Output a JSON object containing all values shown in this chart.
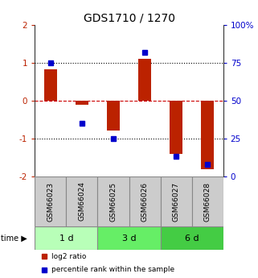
{
  "title": "GDS1710 / 1270",
  "samples": [
    "GSM66023",
    "GSM66024",
    "GSM66025",
    "GSM66026",
    "GSM66027",
    "GSM66028"
  ],
  "log2_ratio": [
    0.82,
    -0.12,
    -0.8,
    1.1,
    -1.42,
    -1.82
  ],
  "percentile_rank": [
    75,
    35,
    25,
    82,
    13,
    8
  ],
  "ylim_left": [
    -2,
    2
  ],
  "ylim_right": [
    0,
    100
  ],
  "yticks_left": [
    -2,
    -1,
    0,
    1,
    2
  ],
  "yticks_right": [
    0,
    25,
    50,
    75,
    100
  ],
  "ytick_labels_right": [
    "0",
    "25",
    "50",
    "75",
    "100%"
  ],
  "time_groups": [
    {
      "label": "1 d",
      "start": 0,
      "end": 2
    },
    {
      "label": "3 d",
      "start": 2,
      "end": 4
    },
    {
      "label": "6 d",
      "start": 4,
      "end": 6
    }
  ],
  "time_group_colors": [
    "#b8ffb8",
    "#66ee66",
    "#44cc44"
  ],
  "bar_color": "#bb2200",
  "percentile_color": "#0000cc",
  "bar_width": 0.4,
  "percentile_marker_size": 5,
  "dotted_color_black": "#000000",
  "dotted_color_red": "#cc0000",
  "background_plot": "#ffffff",
  "sample_box_color": "#cccccc",
  "title_fontsize": 10,
  "axis_fontsize": 7.5,
  "label_fontsize": 7
}
